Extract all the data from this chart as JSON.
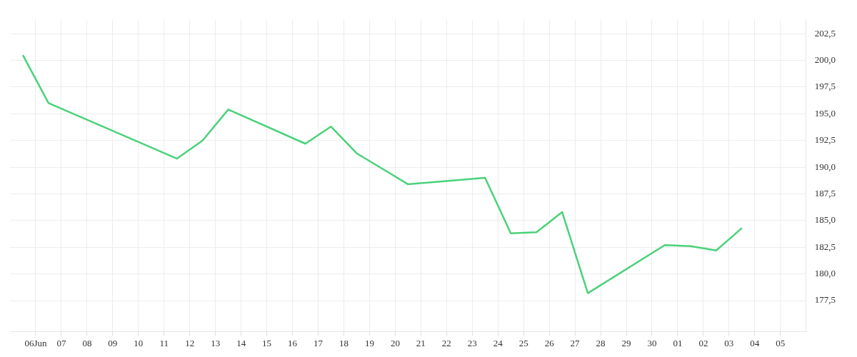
{
  "chart_data": {
    "type": "line",
    "x": [
      "--06-05T12:00",
      "--06-06T12:00",
      "--06-11T12:00",
      "--06-12T12:00",
      "--06-13T12:00",
      "--06-16T12:00",
      "--06-17T12:00",
      "--06-18T12:00",
      "--06-20T12:00",
      "--06-23T12:00",
      "--06-24T12:00",
      "--06-25T12:00",
      "--06-26T12:00",
      "--06-27T12:00",
      "--06-30T12:00",
      "--07-01T12:00",
      "--07-02T12:00",
      "--07-03T12:00"
    ],
    "series": [
      {
        "color": "#4ad27a",
        "values": [
          200.5,
          196.0,
          190.8,
          192.5,
          195.4,
          192.2,
          193.8,
          191.3,
          188.4,
          189.0,
          183.8,
          183.9,
          185.8,
          178.2,
          182.7,
          182.6,
          182.2,
          184.3
        ]
      }
    ],
    "xlim": [
      "--06-05",
      "--07-06"
    ],
    "xticks": [
      {
        "value": "--06-06",
        "label": "06Jun"
      },
      {
        "value": "--06-07",
        "label": "07"
      },
      {
        "value": "--06-08",
        "label": "08"
      },
      {
        "value": "--06-09",
        "label": "09"
      },
      {
        "value": "--06-10",
        "label": "10"
      },
      {
        "value": "--06-11",
        "label": "11"
      },
      {
        "value": "--06-12",
        "label": "12"
      },
      {
        "value": "--06-13",
        "label": "13"
      },
      {
        "value": "--06-14",
        "label": "14"
      },
      {
        "value": "--06-15",
        "label": "15"
      },
      {
        "value": "--06-16",
        "label": "16"
      },
      {
        "value": "--06-17",
        "label": "17"
      },
      {
        "value": "--06-18",
        "label": "18"
      },
      {
        "value": "--06-19",
        "label": "19"
      },
      {
        "value": "--06-20",
        "label": "20"
      },
      {
        "value": "--06-21",
        "label": "21"
      },
      {
        "value": "--06-22",
        "label": "22"
      },
      {
        "value": "--06-23",
        "label": "23"
      },
      {
        "value": "--06-24",
        "label": "24"
      },
      {
        "value": "--06-25",
        "label": "25"
      },
      {
        "value": "--06-26",
        "label": "26"
      },
      {
        "value": "--06-27",
        "label": "27"
      },
      {
        "value": "--06-28",
        "label": "28"
      },
      {
        "value": "--06-29",
        "label": "29"
      },
      {
        "value": "--06-30",
        "label": "30"
      },
      {
        "value": "--07-01",
        "label": "01"
      },
      {
        "value": "--07-02",
        "label": "02"
      },
      {
        "value": "--07-03",
        "label": "03"
      },
      {
        "value": "--07-04",
        "label": "04"
      },
      {
        "value": "--07-05",
        "label": "05"
      }
    ],
    "ylim": [
      174.6,
      203.8
    ],
    "yticks": [
      {
        "value": 177.5,
        "label": "177,5"
      },
      {
        "value": 180,
        "label": "180,0"
      },
      {
        "value": 182.5,
        "label": "182,5"
      },
      {
        "value": 185,
        "label": "185,0"
      },
      {
        "value": 187.5,
        "label": "187,5"
      },
      {
        "value": 190,
        "label": "190,0"
      },
      {
        "value": 192.5,
        "label": "192,5"
      },
      {
        "value": 195,
        "label": "195,0"
      },
      {
        "value": 197.5,
        "label": "197,5"
      },
      {
        "value": 200,
        "label": "200,0"
      },
      {
        "value": 202.5,
        "label": "202,5"
      }
    ],
    "grid": true,
    "legend": false,
    "marker": "none",
    "line_style": "solid"
  }
}
